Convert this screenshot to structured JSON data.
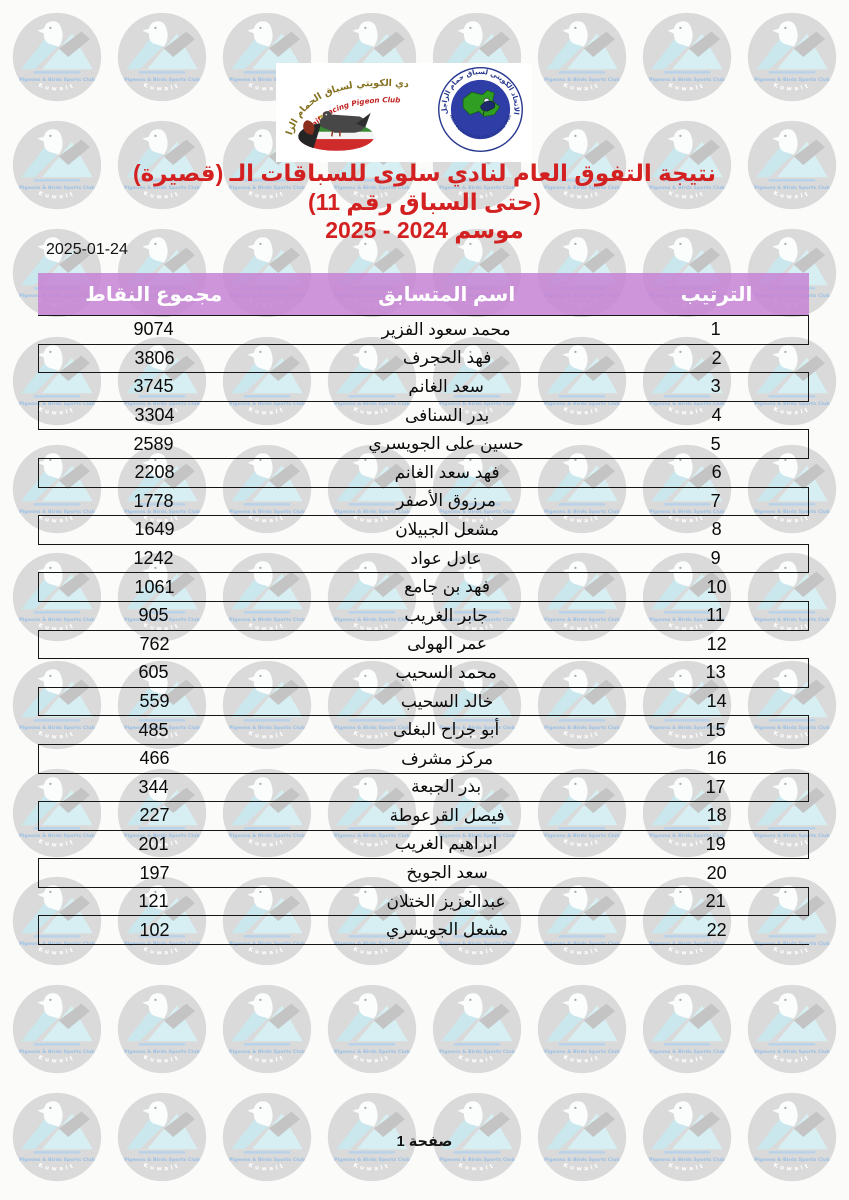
{
  "page": {
    "date": "2025-01-24",
    "footer_label": "صفحة 1"
  },
  "title": {
    "line1": "نتيجة التفوق العام لنادي سلوى للسباقات الـ (قصيرة)",
    "line2": "(حتى السباق رقم 11)",
    "line3": "موسم 2024 - 2025"
  },
  "logos": {
    "left": {
      "arabic_name": "النادي الكويتي لسباق الحمام الزاجل",
      "english_name": "Kuwait Racing Pigeon Club"
    },
    "right": {
      "arabic_name": "الاتحاد الكويتي لسباق حمام الزاجل",
      "english_name": "KUWAIT FEDERATION FOR RACING PIGEON"
    }
  },
  "watermark": {
    "club_line": "Pigeons & Birds Sports Club",
    "country": "Kuwait"
  },
  "colors": {
    "title_red": "#d32020",
    "header_purple": "rgba(197,130,212,0.85)",
    "watermark_gray": "#d9dad9"
  },
  "table": {
    "headers": {
      "rank": "الترتيب",
      "name": "اسم المتسابق",
      "points": "مجموع النقاط"
    },
    "rows": [
      {
        "rank": "1",
        "name": "محمد سعود الفزير",
        "points": "9074"
      },
      {
        "rank": "2",
        "name": "فهد الحجرف",
        "points": "3806"
      },
      {
        "rank": "3",
        "name": "سعد الغانم",
        "points": "3745"
      },
      {
        "rank": "4",
        "name": "بدر السنافى",
        "points": "3304"
      },
      {
        "rank": "5",
        "name": "حسين على الجويسري",
        "points": "2589"
      },
      {
        "rank": "6",
        "name": "فهد سعد الغانم",
        "points": "2208"
      },
      {
        "rank": "7",
        "name": "مرزوق الأصفر",
        "points": "1778"
      },
      {
        "rank": "8",
        "name": "مشعل الجبيلان",
        "points": "1649"
      },
      {
        "rank": "9",
        "name": "عادل عواد",
        "points": "1242"
      },
      {
        "rank": "10",
        "name": "فهد بن جامع",
        "points": "1061"
      },
      {
        "rank": "11",
        "name": "جابر الغريب",
        "points": "905"
      },
      {
        "rank": "12",
        "name": "عمر الهولى",
        "points": "762"
      },
      {
        "rank": "13",
        "name": "محمد السحيب",
        "points": "605"
      },
      {
        "rank": "14",
        "name": "خالد السحيب",
        "points": "559"
      },
      {
        "rank": "15",
        "name": "أبو جراح البغلى",
        "points": "485"
      },
      {
        "rank": "16",
        "name": "مركز مشرف",
        "points": "466"
      },
      {
        "rank": "17",
        "name": "بدر الجبعة",
        "points": "344"
      },
      {
        "rank": "18",
        "name": "فيصل القرعوطة",
        "points": "227"
      },
      {
        "rank": "19",
        "name": "ابراهيم الغريب",
        "points": "201"
      },
      {
        "rank": "20",
        "name": "سعد الجويخ",
        "points": "197"
      },
      {
        "rank": "21",
        "name": "عبدالعزيز الختلان",
        "points": "121"
      },
      {
        "rank": "22",
        "name": "مشعل الجويسري",
        "points": "102"
      }
    ]
  }
}
